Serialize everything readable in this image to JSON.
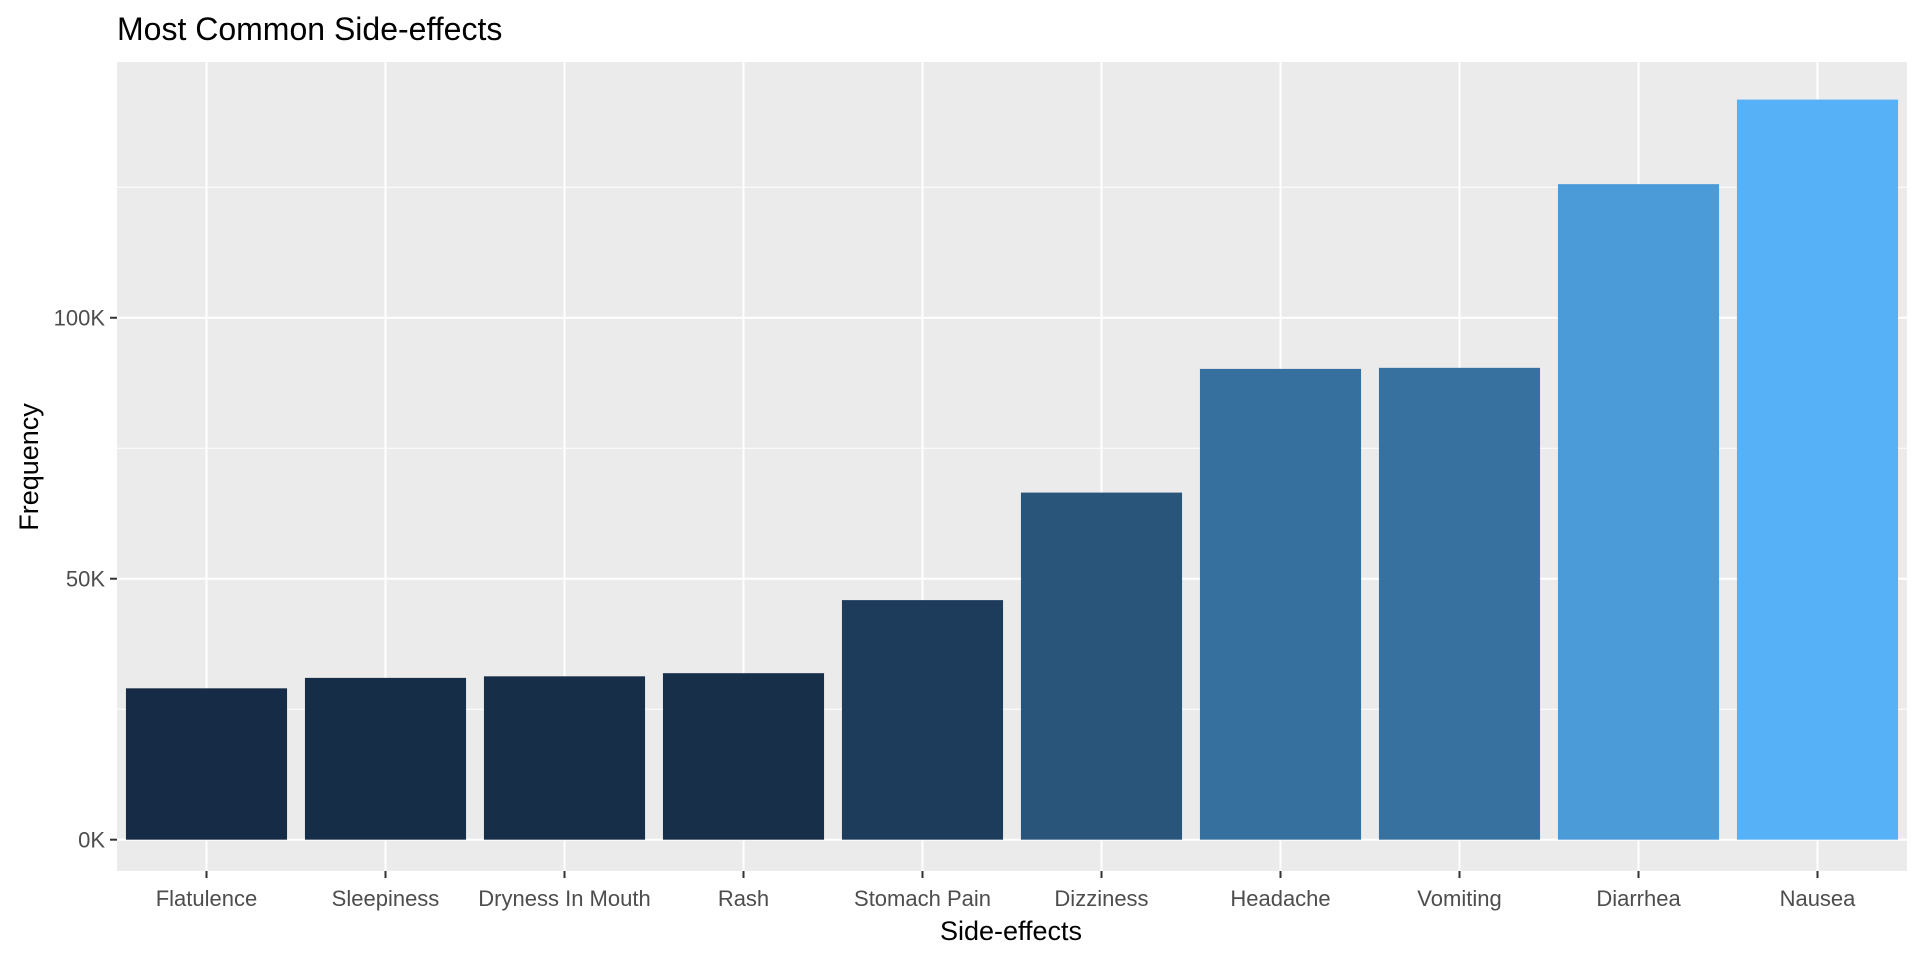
{
  "chart_data": {
    "type": "bar",
    "title": "Most Common Side-effects",
    "xlabel": "Side-effects",
    "ylabel": "Frequency",
    "categories": [
      "Flatulence",
      "Sleepiness",
      "Dryness In Mouth",
      "Rash",
      "Stomach Pain",
      "Dizziness",
      "Headache",
      "Vomiting",
      "Diarrhea",
      "Nausea"
    ],
    "values": [
      29000,
      31000,
      31300,
      31900,
      45900,
      66500,
      90200,
      90400,
      125600,
      141800
    ],
    "colors": [
      "#162c46",
      "#162d47",
      "#172e48",
      "#172f49",
      "#1d3c5c",
      "#285579",
      "#36709f",
      "#36719f",
      "#4b9bd9",
      "#56b1f7"
    ],
    "ylim": [
      -6000,
      149000
    ],
    "yticks": [
      0,
      50000,
      100000
    ],
    "ytick_labels": [
      "0K",
      "50K",
      "100K"
    ],
    "grid": true,
    "legend": "none",
    "panel_background": "#ebebeb",
    "grid_color": "#ffffff"
  }
}
